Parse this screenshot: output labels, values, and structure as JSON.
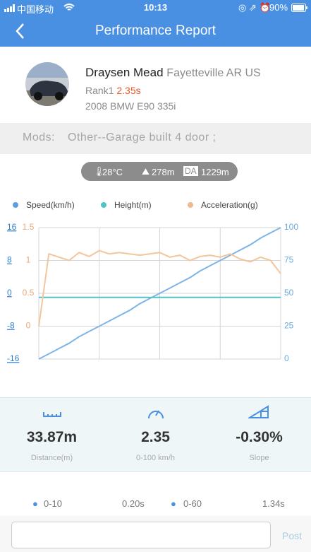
{
  "status_bar": {
    "carrier": "中国移动",
    "time": "10:13",
    "battery": "90%"
  },
  "header": {
    "title": "Performance Report"
  },
  "profile": {
    "name": "Draysen Mead",
    "location": "Fayetteville AR US",
    "rank": "Rank1",
    "rank_time": "2.35s",
    "car": "2008 BMW E90 335i"
  },
  "mods": {
    "label": "Mods:",
    "text": "Other--Garage built 4 door ;"
  },
  "conditions": {
    "temperature": "28°C",
    "altitude": "278m",
    "da_label": "DA",
    "da": "1229m"
  },
  "chart_data": {
    "type": "line",
    "categories": [
      null,
      null,
      null,
      null,
      null,
      null,
      null,
      null,
      null,
      null,
      null,
      null,
      null,
      null,
      null,
      null,
      null,
      null,
      null,
      null,
      null,
      null,
      null,
      null,
      null
    ],
    "series": [
      {
        "name": "Speed(km/h)",
        "color": "#7fb4e6",
        "legend_color": "#5b9ee0",
        "axis": "y2",
        "values": [
          0,
          4,
          8,
          12,
          17,
          21,
          25,
          29,
          33,
          37,
          42,
          46,
          50,
          54,
          58,
          62,
          67,
          71,
          75,
          79,
          83,
          87,
          92,
          96,
          100
        ]
      },
      {
        "name": "Height(m)",
        "color": "#4fc3c7",
        "legend_color": "#4fc3c7",
        "axis": "y",
        "values": [
          -1,
          -1,
          -1,
          -1,
          -1,
          -1,
          -1,
          -1,
          -1,
          -1,
          -1,
          -1,
          -1,
          -1,
          -1,
          -1,
          -1,
          -1,
          -1,
          -1,
          -1,
          -1,
          -1,
          -1,
          -1
        ]
      },
      {
        "name": "Acceleration(g)",
        "color": "#f3c59c",
        "legend_color": "#f0b98a",
        "axis": "y3",
        "values": [
          0,
          1.1,
          1.05,
          1.0,
          1.12,
          1.06,
          1.15,
          1.1,
          1.12,
          1.1,
          1.08,
          1.1,
          1.12,
          1.05,
          1.08,
          1.0,
          1.06,
          1.08,
          1.05,
          1.1,
          1.02,
          0.98,
          1.05,
          1.0,
          0.8
        ]
      }
    ],
    "ylim": [
      -16,
      16
    ],
    "yticks": [
      16,
      8,
      0,
      -8,
      -16
    ],
    "ytick_color": "#2f7fd0",
    "y2lim": [
      0,
      100
    ],
    "y2ticks": [
      100,
      75,
      50,
      25,
      0
    ],
    "y2tick_color": "#6aa8dc",
    "y3lim": [
      -0.5,
      1.5
    ],
    "y3ticks": [
      1.5,
      1,
      0.5,
      0
    ],
    "y3tick_color": "#e9a877",
    "grid": true
  },
  "stats": [
    {
      "value": "33.87m",
      "label": "Distance(m)"
    },
    {
      "value": "2.35",
      "label": "0-100 km/h"
    },
    {
      "value": "-0.30%",
      "label": "Slope"
    }
  ],
  "splits": [
    {
      "label": "0-10",
      "time": "0.20s"
    },
    {
      "label": "0-60",
      "time": "1.34s"
    }
  ],
  "comment": {
    "button": "Post"
  }
}
